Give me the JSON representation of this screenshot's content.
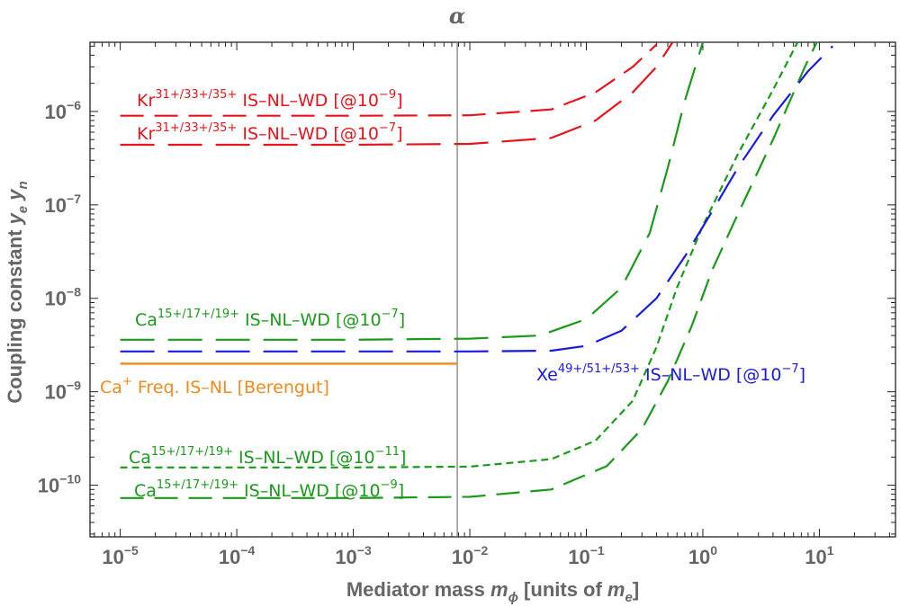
{
  "chart_data": {
    "type": "line",
    "title": "",
    "x_scale": "log",
    "y_scale": "log",
    "xlim": [
      5.5e-06,
      45
    ],
    "ylim": [
      2.8e-11,
      5.5e-06
    ],
    "xlabel": {
      "main": "Mediator mass ",
      "var": "m",
      "var_sub": "ϕ",
      "rest": " [units of ",
      "unit_var": "m",
      "unit_sub": "e",
      "close": "]"
    },
    "ylabel": {
      "main": "Coupling constant ",
      "v1": "y",
      "s1": "e",
      "v2": "y",
      "s2": "n"
    },
    "x_ticks": [
      {
        "value": 1e-05,
        "base": "10",
        "exp": "−5"
      },
      {
        "value": 0.0001,
        "base": "10",
        "exp": "−4"
      },
      {
        "value": 0.001,
        "base": "10",
        "exp": "−3"
      },
      {
        "value": 0.01,
        "base": "10",
        "exp": "−2"
      },
      {
        "value": 0.1,
        "base": "10",
        "exp": "−1"
      },
      {
        "value": 1,
        "base": "10",
        "exp": "0"
      },
      {
        "value": 10,
        "base": "10",
        "exp": "1"
      }
    ],
    "y_ticks": [
      {
        "value": 1e-10,
        "base": "10",
        "exp": "−10"
      },
      {
        "value": 1e-09,
        "base": "10",
        "exp": "−9"
      },
      {
        "value": 1e-08,
        "base": "10",
        "exp": "−8"
      },
      {
        "value": 1e-07,
        "base": "10",
        "exp": "−7"
      },
      {
        "value": 1e-06,
        "base": "10",
        "exp": "−6"
      }
    ],
    "vline": {
      "x": 0.0078,
      "label": "α",
      "color": "#777777"
    },
    "series": [
      {
        "name": "Kr^{31+/33+/35+} IS-NL-WD [@10^{-9}]",
        "color": "#e8141c",
        "dash": "long",
        "points": [
          [
            1e-05,
            9e-07
          ],
          [
            0.001,
            9e-07
          ],
          [
            0.01,
            9.1e-07
          ],
          [
            0.05,
            1.05e-06
          ],
          [
            0.12,
            1.6e-06
          ],
          [
            0.25,
            3e-06
          ],
          [
            0.4,
            5.2e-06
          ]
        ]
      },
      {
        "name": "Kr^{31+/33+/35+} IS-NL-WD [@10^{-7}]",
        "color": "#e8141c",
        "dash": "xlong",
        "points": [
          [
            1e-05,
            4.4e-07
          ],
          [
            0.001,
            4.4e-07
          ],
          [
            0.01,
            4.5e-07
          ],
          [
            0.05,
            5.2e-07
          ],
          [
            0.12,
            8e-07
          ],
          [
            0.25,
            1.6e-06
          ],
          [
            0.4,
            3e-06
          ],
          [
            0.55,
            5.5e-06
          ]
        ]
      },
      {
        "name": "Ca^{15+/17+/19+} IS-NL-WD [@10^{-7}]",
        "color": "#1a9a1a",
        "dash": "xlong",
        "points": [
          [
            1e-05,
            3.6e-09
          ],
          [
            0.001,
            3.6e-09
          ],
          [
            0.01,
            3.7e-09
          ],
          [
            0.04,
            4e-09
          ],
          [
            0.1,
            6e-09
          ],
          [
            0.2,
            1.3e-08
          ],
          [
            0.35,
            5e-08
          ],
          [
            0.5,
            2.5e-07
          ],
          [
            0.7,
            1.3e-06
          ],
          [
            1.0,
            5.5e-06
          ]
        ]
      },
      {
        "name": "Ca^{15+/17+/19+} IS-NL-WD [@10^{-11}]",
        "color": "#1a9a1a",
        "dash": "short",
        "points": [
          [
            1e-05,
            1.55e-10
          ],
          [
            0.001,
            1.55e-10
          ],
          [
            0.01,
            1.58e-10
          ],
          [
            0.05,
            1.9e-10
          ],
          [
            0.12,
            3e-10
          ],
          [
            0.25,
            8e-10
          ],
          [
            0.4,
            3e-09
          ],
          [
            0.6,
            1.3e-08
          ],
          [
            1.0,
            6e-08
          ],
          [
            2.0,
            3.5e-07
          ],
          [
            4.0,
            1.7e-06
          ],
          [
            6.5,
            5.5e-06
          ]
        ]
      },
      {
        "name": "Ca^{15+/17+/19+} IS-NL-WD [@10^{-9}]",
        "color": "#1a9a1a",
        "dash": "long",
        "points": [
          [
            1e-05,
            7.3e-11
          ],
          [
            0.001,
            7.3e-11
          ],
          [
            0.01,
            7.5e-11
          ],
          [
            0.05,
            9e-11
          ],
          [
            0.15,
            1.6e-10
          ],
          [
            0.3,
            4e-10
          ],
          [
            0.5,
            1.3e-09
          ],
          [
            0.8,
            5e-09
          ],
          [
            1.2,
            2e-08
          ],
          [
            2.0,
            8e-08
          ],
          [
            4.0,
            5e-07
          ],
          [
            7.5,
            3e-06
          ],
          [
            9.5,
            5.5e-06
          ]
        ]
      },
      {
        "name": "Xe^{49+/51+/53+} IS-NL-WD [@10^{-7}]",
        "color": "#1a1ae0",
        "dash": "xlong",
        "points": [
          [
            1e-05,
            2.7e-09
          ],
          [
            0.001,
            2.7e-09
          ],
          [
            0.01,
            2.7e-09
          ],
          [
            0.05,
            2.75e-09
          ],
          [
            0.1,
            3.1e-09
          ],
          [
            0.2,
            4.5e-09
          ],
          [
            0.4,
            1e-08
          ],
          [
            0.7,
            2.8e-08
          ],
          [
            1.2,
            8.5e-08
          ],
          [
            2.0,
            2.5e-07
          ],
          [
            4.0,
            9e-07
          ],
          [
            8.0,
            2.7e-06
          ],
          [
            13.0,
            5e-06
          ]
        ]
      },
      {
        "name": "Ca^{+} Freq. IS-NL [Berengut]",
        "color": "#f08a1c",
        "dash": "solid",
        "points": [
          [
            1e-05,
            2e-09
          ],
          [
            0.0078,
            2e-09
          ]
        ]
      }
    ],
    "annotations": [
      {
        "id": "kr-9",
        "color": "#e8141c",
        "base": "Kr",
        "sup": "31+/33+/35+",
        "mid": " IS–NL–WD [@10",
        "exp": "−9",
        "end": "]"
      },
      {
        "id": "kr-7",
        "color": "#e8141c",
        "base": "Kr",
        "sup": "31+/33+/35+",
        "mid": " IS–NL–WD [@10",
        "exp": "−7",
        "end": "]"
      },
      {
        "id": "ca-7",
        "color": "#1a9a1a",
        "base": "Ca",
        "sup": "15+/17+/19+",
        "mid": " IS–NL–WD [@10",
        "exp": "−7",
        "end": "]"
      },
      {
        "id": "ca-11",
        "color": "#1a9a1a",
        "base": "Ca",
        "sup": "15+/17+/19+",
        "mid": " IS–NL–WD [@10",
        "exp": "−11",
        "end": "]"
      },
      {
        "id": "ca-9",
        "color": "#1a9a1a",
        "base": "Ca",
        "sup": "15+/17+/19+",
        "mid": " IS–NL–WD [@10",
        "exp": "−9",
        "end": "]"
      },
      {
        "id": "xe-7",
        "color": "#1a1ae0",
        "base": "Xe",
        "sup": "49+/51+/53+",
        "mid": " IS–NL–WD [@10",
        "exp": "−7",
        "end": "]"
      },
      {
        "id": "ca-plus",
        "color": "#f08a1c",
        "base": "Ca",
        "sup": "+",
        "mid": " Freq. IS–NL [Berengut]",
        "exp": "",
        "end": ""
      }
    ],
    "grid": false,
    "legend": "none"
  }
}
